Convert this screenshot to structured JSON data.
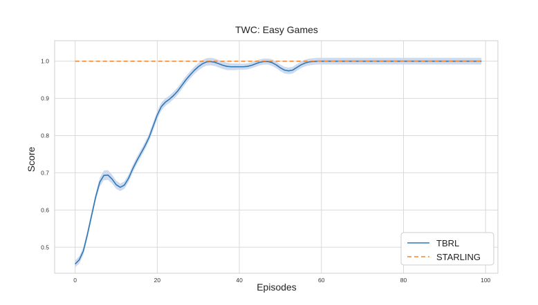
{
  "chart_data": {
    "type": "line",
    "title": "TWC: Easy Games",
    "xlabel": "Episodes",
    "ylabel": "Score",
    "xlim": [
      -5,
      103
    ],
    "ylim": [
      0.43,
      1.055
    ],
    "xticks": [
      0,
      20,
      40,
      60,
      80,
      100
    ],
    "yticks": [
      0.5,
      0.6,
      0.7,
      0.8,
      0.9,
      1.0
    ],
    "ytick_labels": [
      "0.5",
      "0.6",
      "0.7",
      "0.8",
      "0.9",
      "1.0"
    ],
    "grid": true,
    "legend_position": "bottom-right",
    "series": [
      {
        "name": "TBRL",
        "style": "solid",
        "color": "#2e77b6",
        "band_color": "#c9d6ec",
        "x": [
          0,
          1,
          2,
          3,
          4,
          5,
          6,
          7,
          8,
          9,
          10,
          11,
          12,
          13,
          14,
          15,
          16,
          17,
          18,
          19,
          20,
          21,
          22,
          23,
          24,
          25,
          26,
          27,
          28,
          29,
          30,
          31,
          32,
          33,
          34,
          35,
          36,
          37,
          38,
          39,
          40,
          41,
          42,
          43,
          44,
          45,
          46,
          47,
          48,
          49,
          50,
          51,
          52,
          53,
          54,
          55,
          56,
          57,
          58,
          59,
          60,
          65,
          70,
          75,
          80,
          85,
          90,
          95,
          99
        ],
        "values": [
          0.455,
          0.466,
          0.49,
          0.535,
          0.585,
          0.635,
          0.675,
          0.693,
          0.694,
          0.683,
          0.668,
          0.661,
          0.667,
          0.685,
          0.71,
          0.732,
          0.752,
          0.772,
          0.795,
          0.825,
          0.855,
          0.878,
          0.89,
          0.898,
          0.908,
          0.92,
          0.935,
          0.95,
          0.963,
          0.975,
          0.985,
          0.993,
          0.998,
          0.999,
          0.997,
          0.993,
          0.989,
          0.986,
          0.985,
          0.985,
          0.985,
          0.985,
          0.986,
          0.989,
          0.993,
          0.997,
          0.999,
          0.999,
          0.996,
          0.99,
          0.982,
          0.976,
          0.974,
          0.976,
          0.983,
          0.99,
          0.995,
          0.998,
          0.999,
          1.0,
          1.0,
          1.0,
          1.0,
          1.0,
          1.0,
          1.0,
          1.0,
          1.0,
          1.0
        ],
        "band": [
          0.009,
          0.01,
          0.01,
          0.01,
          0.01,
          0.01,
          0.012,
          0.013,
          0.013,
          0.012,
          0.011,
          0.01,
          0.01,
          0.01,
          0.01,
          0.01,
          0.01,
          0.01,
          0.01,
          0.011,
          0.011,
          0.011,
          0.01,
          0.01,
          0.01,
          0.01,
          0.01,
          0.01,
          0.01,
          0.01,
          0.01,
          0.01,
          0.01,
          0.01,
          0.01,
          0.01,
          0.01,
          0.01,
          0.009,
          0.009,
          0.008,
          0.008,
          0.008,
          0.008,
          0.008,
          0.008,
          0.008,
          0.008,
          0.009,
          0.009,
          0.009,
          0.009,
          0.009,
          0.009,
          0.009,
          0.009,
          0.009,
          0.009,
          0.009,
          0.009,
          0.009,
          0.009,
          0.009,
          0.009,
          0.009,
          0.009,
          0.009,
          0.009,
          0.009
        ]
      },
      {
        "name": "STARLING",
        "style": "dashed",
        "color": "#f5852a",
        "x": [
          0,
          99
        ],
        "values": [
          1.0,
          1.0
        ]
      }
    ]
  },
  "colors": {
    "grid": "#d9d9d9",
    "frame": "#cfcfcf",
    "legend_border": "#cccccc"
  }
}
